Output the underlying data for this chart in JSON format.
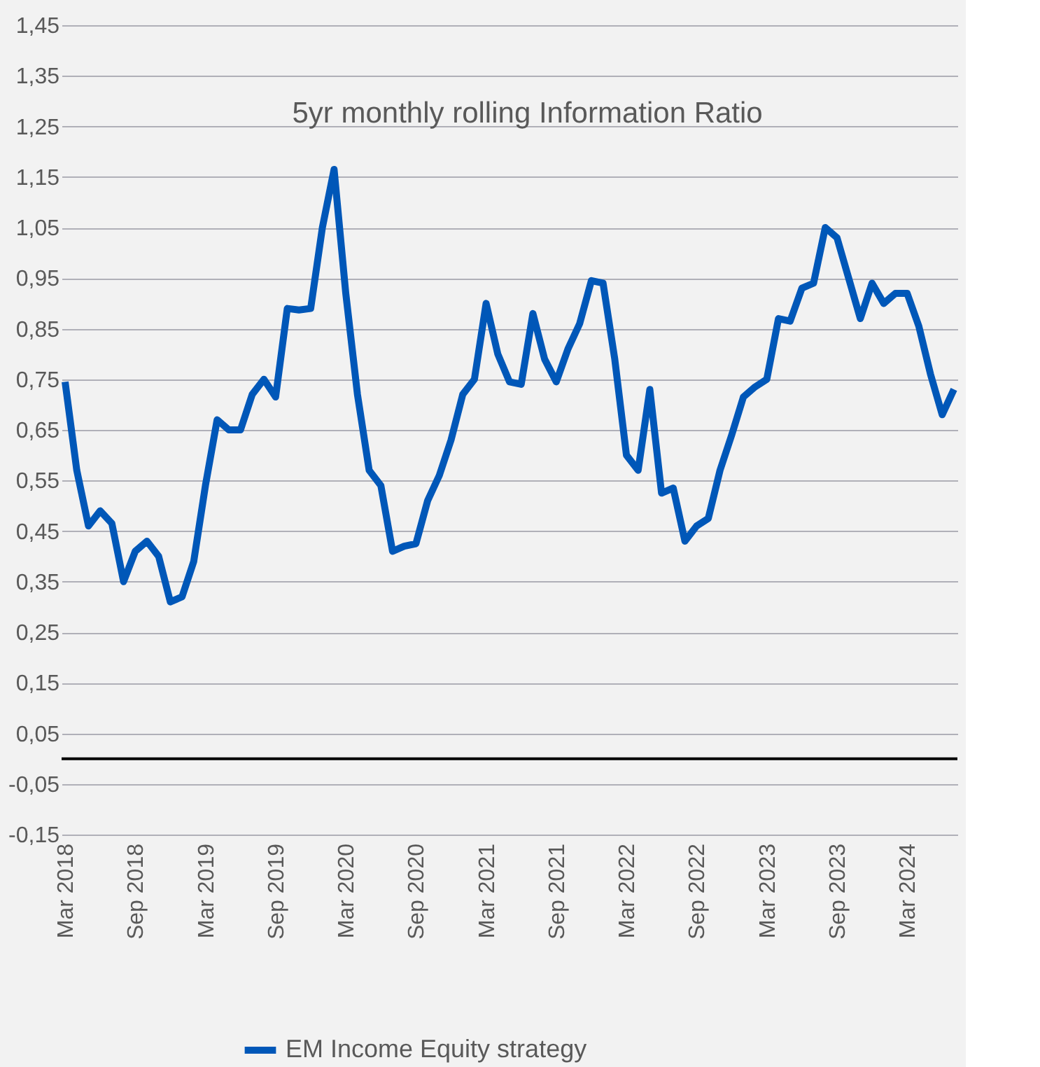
{
  "chart_data": {
    "type": "line",
    "title": "5yr monthly rolling Information Ratio",
    "categories": [
      "Mar 2018",
      null,
      null,
      null,
      null,
      null,
      "Sep 2018",
      null,
      null,
      null,
      null,
      null,
      "Mar 2019",
      null,
      null,
      null,
      null,
      null,
      "Sep 2019",
      null,
      null,
      null,
      null,
      null,
      "Mar 2020",
      null,
      null,
      null,
      null,
      null,
      "Sep 2020",
      null,
      null,
      null,
      null,
      null,
      "Mar 2021",
      null,
      null,
      null,
      null,
      null,
      "Sep 2021",
      null,
      null,
      null,
      null,
      null,
      "Mar 2022",
      null,
      null,
      null,
      null,
      null,
      "Sep 2022",
      null,
      null,
      null,
      null,
      null,
      "Mar 2023",
      null,
      null,
      null,
      null,
      null,
      "Sep 2023",
      null,
      null,
      null,
      null,
      null,
      "Mar 2024",
      null,
      null,
      null,
      null
    ],
    "series": [
      {
        "name": "EM Income Equity strategy",
        "color": "#0057b8",
        "values": [
          0.745,
          0.57,
          0.46,
          0.49,
          0.465,
          0.35,
          0.41,
          0.43,
          0.4,
          0.31,
          0.32,
          0.39,
          0.54,
          0.67,
          0.65,
          0.65,
          0.72,
          0.75,
          0.715,
          0.89,
          0.887,
          0.89,
          1.05,
          1.165,
          0.92,
          0.72,
          0.57,
          0.54,
          0.41,
          0.42,
          0.425,
          0.51,
          0.56,
          0.63,
          0.72,
          0.75,
          0.9,
          0.8,
          0.745,
          0.74,
          0.88,
          0.79,
          0.745,
          0.81,
          0.86,
          0.945,
          0.94,
          0.79,
          0.6,
          0.57,
          0.73,
          0.525,
          0.535,
          0.43,
          0.46,
          0.475,
          0.57,
          0.64,
          0.715,
          0.735,
          0.75,
          0.87,
          0.865,
          0.93,
          0.94,
          1.05,
          1.03,
          0.95,
          0.87,
          0.94,
          0.9,
          0.92,
          0.92,
          0.855,
          0.76,
          0.68,
          0.73
        ]
      }
    ],
    "ylim": [
      -0.15,
      1.45
    ],
    "yticks": [
      {
        "value": -0.15,
        "label": "-0,15"
      },
      {
        "value": -0.05,
        "label": "-0,05"
      },
      {
        "value": 0.05,
        "label": "0,05"
      },
      {
        "value": 0.15,
        "label": "0,15"
      },
      {
        "value": 0.25,
        "label": "0,25"
      },
      {
        "value": 0.35,
        "label": "0,35"
      },
      {
        "value": 0.45,
        "label": "0,45"
      },
      {
        "value": 0.55,
        "label": "0,55"
      },
      {
        "value": 0.65,
        "label": "0,65"
      },
      {
        "value": 0.75,
        "label": "0,75"
      },
      {
        "value": 0.85,
        "label": "0,85"
      },
      {
        "value": 0.95,
        "label": "0,95"
      },
      {
        "value": 1.05,
        "label": "1,05"
      },
      {
        "value": 1.15,
        "label": "1,15"
      },
      {
        "value": 1.25,
        "label": "1,25"
      },
      {
        "value": 1.35,
        "label": "1,35"
      },
      {
        "value": 1.45,
        "label": "1,45"
      }
    ],
    "ref_lines": [
      {
        "axis": "y",
        "value": 0,
        "color": "#000000",
        "line_style": "solid"
      }
    ],
    "grid": "y",
    "legend": "bottom",
    "marker": "none",
    "line_style": "solid"
  }
}
